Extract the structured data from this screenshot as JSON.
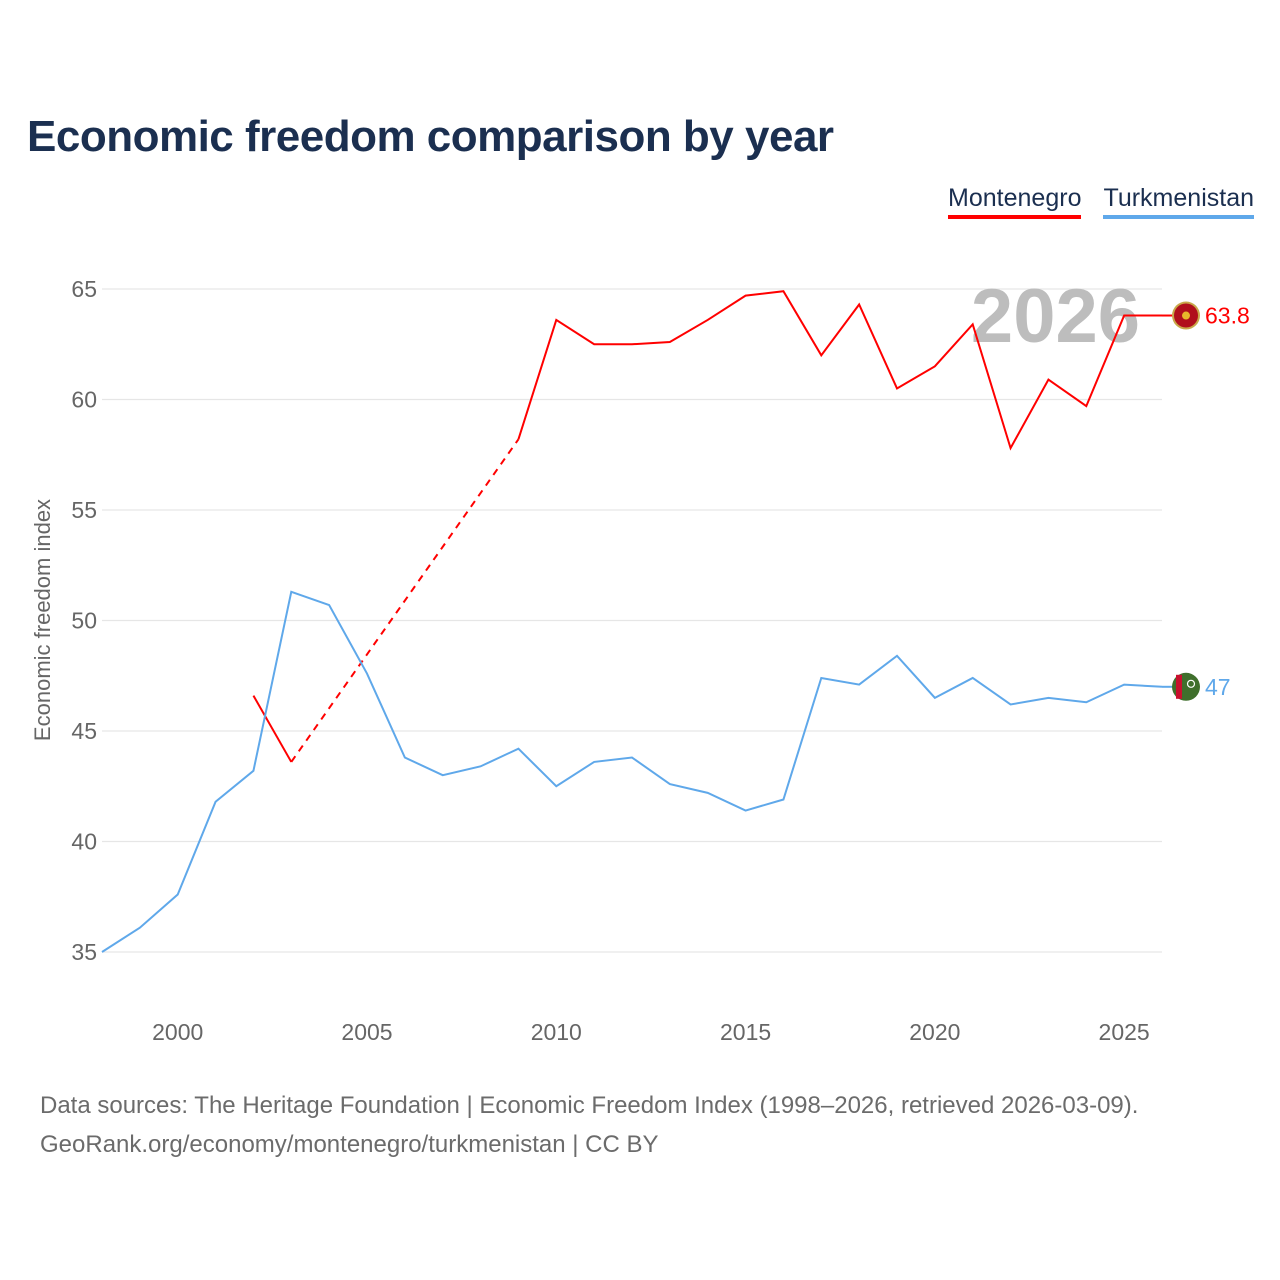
{
  "title": "Economic freedom comparison by year",
  "footer": {
    "line1": "Data sources: The Heritage Foundation | Economic Freedom Index (1998–2026, retrieved 2026-03-09).",
    "line2": "GeoRank.org/economy/montenegro/turkmenistan | CC BY"
  },
  "chart_data": {
    "type": "line",
    "title": "Economic freedom comparison by year",
    "xlabel": "",
    "ylabel": "Economic freedom index",
    "xlim": [
      1998,
      2026
    ],
    "ylim": [
      35,
      65
    ],
    "xticks": [
      "2000",
      "2005",
      "2010",
      "2015",
      "2020",
      "2025"
    ],
    "yticks": [
      "35",
      "40",
      "45",
      "50",
      "55",
      "60",
      "65"
    ],
    "year_watermark": "2026",
    "legend_position": "top-right",
    "x": [
      1998,
      1999,
      2000,
      2001,
      2002,
      2003,
      2004,
      2005,
      2006,
      2007,
      2008,
      2009,
      2010,
      2011,
      2012,
      2013,
      2014,
      2015,
      2016,
      2017,
      2018,
      2019,
      2020,
      2021,
      2022,
      2023,
      2024,
      2025,
      2026
    ],
    "series": [
      {
        "name": "Montenegro",
        "color": "#ff0000",
        "end_label": "63.8",
        "flag": "montenegro-flag",
        "values": [
          null,
          null,
          null,
          null,
          46.6,
          43.6,
          null,
          null,
          null,
          null,
          null,
          58.2,
          63.6,
          62.5,
          62.5,
          62.6,
          63.6,
          64.7,
          64.9,
          62.0,
          64.3,
          60.5,
          61.5,
          63.4,
          57.8,
          60.9,
          59.7,
          63.8,
          63.8
        ]
      },
      {
        "name": "Turkmenistan",
        "color": "#5fa8ea",
        "end_label": "47",
        "flag": "turkmenistan-flag",
        "values": [
          35.0,
          36.1,
          37.6,
          41.8,
          43.2,
          51.3,
          50.7,
          47.6,
          43.8,
          43.0,
          43.4,
          44.2,
          42.5,
          43.6,
          43.8,
          42.6,
          42.2,
          41.4,
          41.9,
          47.4,
          47.1,
          48.4,
          46.5,
          47.4,
          46.2,
          46.5,
          46.3,
          47.1,
          47.0
        ]
      }
    ]
  }
}
